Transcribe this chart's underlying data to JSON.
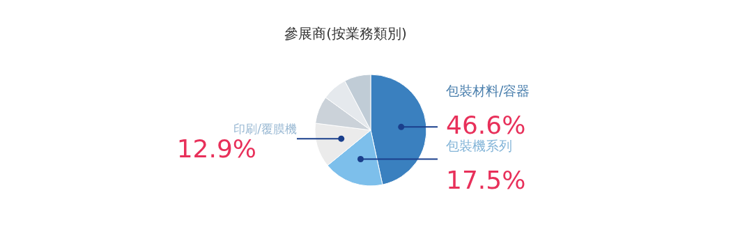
{
  "chart_data": {
    "type": "pie",
    "title": "參展商(按業務類別)",
    "categories": [
      "包裝材料/容器",
      "包裝機系列",
      "印刷/覆膜機",
      null,
      null,
      null
    ],
    "values": [
      46.6,
      17.5,
      12.9,
      8.0,
      7.3,
      7.7
    ],
    "colors": [
      "#3a80bf",
      "#7dbfeb",
      "#ebebeb",
      "#cbd2d9",
      "#e5e9ed",
      "#c0ccd6"
    ],
    "value_labels": [
      "46.6%",
      "17.5%",
      "12.9%",
      null,
      null,
      null
    ],
    "legend": false
  }
}
